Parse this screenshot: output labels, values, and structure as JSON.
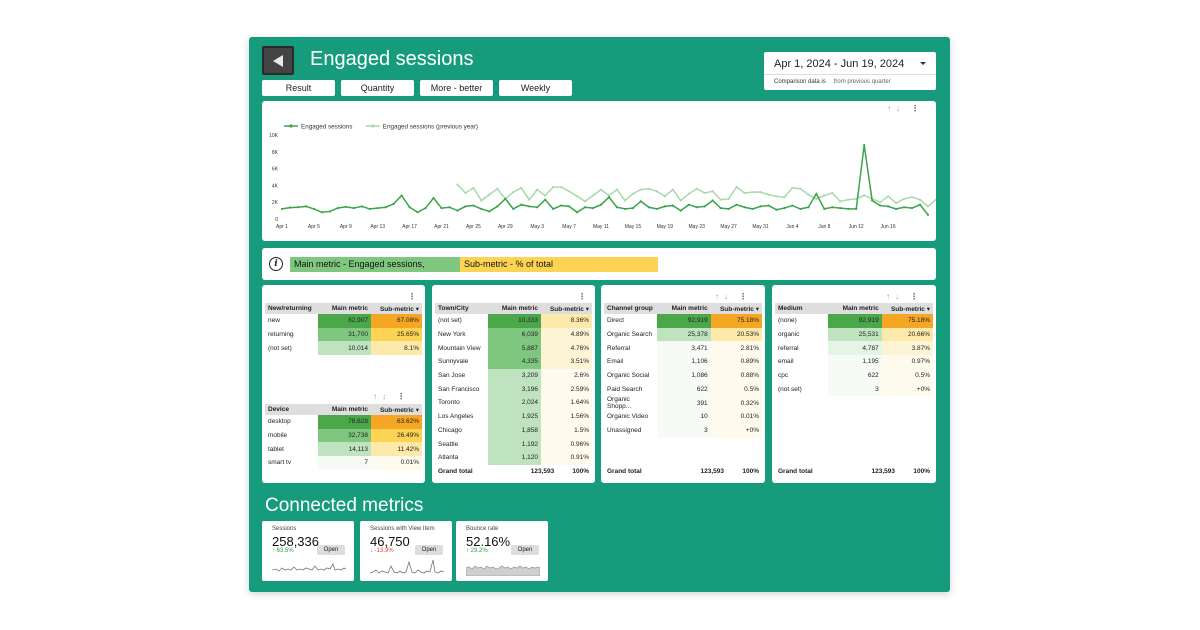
{
  "header": {
    "title": "Engaged sessions",
    "filters": [
      "Result",
      "Quantity",
      "More - better",
      "Weekly"
    ],
    "date_range": "Apr 1, 2024 - Jun 19, 2024",
    "comparison_label": "Comparison data is",
    "comparison_value": "from previous quarter"
  },
  "chart_data": {
    "type": "line",
    "legend_placement": "top-left",
    "grid": false,
    "ylim": [
      0,
      10000
    ],
    "yticks": [
      "10K",
      "8K",
      "6K",
      "4K",
      "2K",
      "0"
    ],
    "xticks": [
      "Apr 1",
      "Apr 5",
      "Apr 9",
      "Apr 13",
      "Apr 17",
      "Apr 21",
      "Apr 25",
      "Apr 29",
      "May 3",
      "May 7",
      "May 11",
      "May 15",
      "May 19",
      "May 23",
      "May 27",
      "May 31",
      "Jun 4",
      "Jun 8",
      "Jun 12",
      "Jun 16"
    ],
    "series": [
      {
        "name": "Engaged sessions",
        "color": "#3aa44a",
        "values": [
          1200,
          1350,
          1400,
          1500,
          1200,
          800,
          900,
          1300,
          1450,
          1300,
          1500,
          1200,
          1300,
          1400,
          1800,
          2800,
          1400,
          800,
          1300,
          2500,
          1300,
          1400,
          1000,
          1500,
          1600,
          1200,
          900,
          1500,
          2400,
          1200,
          1700,
          1500,
          1400,
          2300,
          1200,
          1600,
          1500,
          800,
          1400,
          1300,
          1700,
          2600,
          1400,
          1200,
          1300,
          2100,
          1400,
          1200,
          1500,
          1600,
          1000,
          1700,
          1400,
          1500,
          2200,
          1300,
          1200,
          1700,
          1400,
          1200,
          1500,
          1600,
          1100,
          1300,
          1600,
          1200,
          1400,
          3000,
          1200,
          1400,
          1300,
          1200,
          1200,
          8800,
          2200,
          1600,
          1500,
          1200,
          1400,
          1300,
          1700,
          500
        ]
      },
      {
        "name": "Engaged sessions (previous year)",
        "color": "#a8d9a8",
        "values": [
          null,
          null,
          null,
          null,
          null,
          null,
          null,
          null,
          null,
          null,
          null,
          null,
          null,
          null,
          null,
          null,
          null,
          null,
          null,
          null,
          null,
          null,
          4100,
          3100,
          3700,
          2200,
          2900,
          3600,
          2400,
          3200,
          3700,
          2300,
          3500,
          2800,
          3800,
          3800,
          3300,
          2700,
          2100,
          2800,
          3500,
          2800,
          3500,
          2200,
          3000,
          3500,
          3600,
          3300,
          2700,
          3500,
          2200,
          3000,
          3600,
          3100,
          3300,
          2300,
          2400,
          3800,
          3100,
          3200,
          3200,
          2900,
          2700,
          2600,
          3700,
          3600,
          2900,
          2400,
          2800,
          3100,
          2100,
          2300,
          2400,
          2800,
          2400,
          2000,
          2700,
          1900,
          2400,
          2600,
          2300,
          1500,
          2300,
          1900
        ]
      }
    ]
  },
  "info": {
    "main_legend": "Main metric - Engaged sessions,",
    "sub_legend": "Sub-metric - % of total"
  },
  "tables": {
    "new_returning": {
      "headers": [
        "New/returning",
        "Main metric",
        "Sub-metric"
      ],
      "rows": [
        [
          "new",
          "82,907",
          "67.08%"
        ],
        [
          "returning",
          "31,700",
          "25.65%"
        ],
        [
          "(not set)",
          "10,014",
          "8.1%"
        ]
      ]
    },
    "device": {
      "headers": [
        "Device",
        "Main metric",
        "Sub-metric"
      ],
      "rows": [
        [
          "desktop",
          "78,628",
          "63.62%"
        ],
        [
          "mobile",
          "32,738",
          "26.49%"
        ],
        [
          "tablet",
          "14,113",
          "11.42%"
        ],
        [
          "smart tv",
          "7",
          "0.01%"
        ]
      ]
    },
    "town_city": {
      "headers": [
        "Town/City",
        "Main metric",
        "Sub-metric"
      ],
      "rows": [
        [
          "(not set)",
          "10,333",
          "8.36%"
        ],
        [
          "New York",
          "6,039",
          "4.89%"
        ],
        [
          "Mountain View",
          "5,887",
          "4.76%"
        ],
        [
          "Sunnyvale",
          "4,335",
          "3.51%"
        ],
        [
          "San Jose",
          "3,209",
          "2.6%"
        ],
        [
          "San Francisco",
          "3,196",
          "2.59%"
        ],
        [
          "Toronto",
          "2,024",
          "1.64%"
        ],
        [
          "Los Angeles",
          "1,925",
          "1.56%"
        ],
        [
          "Chicago",
          "1,858",
          "1.5%"
        ],
        [
          "Seattle",
          "1,192",
          "0.96%"
        ],
        [
          "Atlanta",
          "1,120",
          "0.91%"
        ]
      ],
      "total": [
        "Grand total",
        "123,593",
        "100%"
      ]
    },
    "channel_group": {
      "headers": [
        "Channel group",
        "Main metric",
        "Sub-metric"
      ],
      "rows": [
        [
          "Direct",
          "92,919",
          "75.18%"
        ],
        [
          "Organic Search",
          "25,378",
          "20.53%"
        ],
        [
          "Referral",
          "3,471",
          "2.81%"
        ],
        [
          "Email",
          "1,106",
          "0.89%"
        ],
        [
          "Organic Social",
          "1,086",
          "0.88%"
        ],
        [
          "Paid Search",
          "622",
          "0.5%"
        ],
        [
          "Organic Shopp...",
          "391",
          "0.32%"
        ],
        [
          "Organic Video",
          "10",
          "0.01%"
        ],
        [
          "Unassigned",
          "3",
          "+0%"
        ]
      ],
      "total": [
        "Grand total",
        "123,593",
        "100%"
      ]
    },
    "medium": {
      "headers": [
        "Medium",
        "Main metric",
        "Sub-metric"
      ],
      "rows": [
        [
          "(none)",
          "92,919",
          "75.18%"
        ],
        [
          "organic",
          "25,531",
          "20.66%"
        ],
        [
          "referral",
          "4,787",
          "3.87%"
        ],
        [
          "email",
          "1,195",
          "0.97%"
        ],
        [
          "cpc",
          "622",
          "0.5%"
        ],
        [
          "(not set)",
          "3",
          "+0%"
        ]
      ],
      "total": [
        "Grand total",
        "123,593",
        "100%"
      ]
    }
  },
  "connected": {
    "title": "Connected metrics",
    "cards": [
      {
        "label": "Sessions",
        "value": "258,336",
        "change": "↑ 63.5%",
        "change_color": "#2e9e46",
        "open": "Open"
      },
      {
        "label": "Sessions with View Item",
        "value": "46,750",
        "change": "↓ -13.9%",
        "change_color": "#e0443a",
        "open": "Open"
      },
      {
        "label": "Bounce rate",
        "value": "52.16%",
        "change": "↑ 29.2%",
        "change_color": "#2e9e46",
        "open": "Open"
      }
    ]
  },
  "colors": {
    "background": "#169c7d",
    "main_metric_scale": [
      "#4aa84a",
      "#7fc77f",
      "#bfe3bf",
      "#e6f4e6",
      "#f6fbf6"
    ],
    "sub_metric_scale": [
      "#f5a623",
      "#fcd352",
      "#fde9a9",
      "#fdf4d6",
      "#fefaed"
    ]
  }
}
